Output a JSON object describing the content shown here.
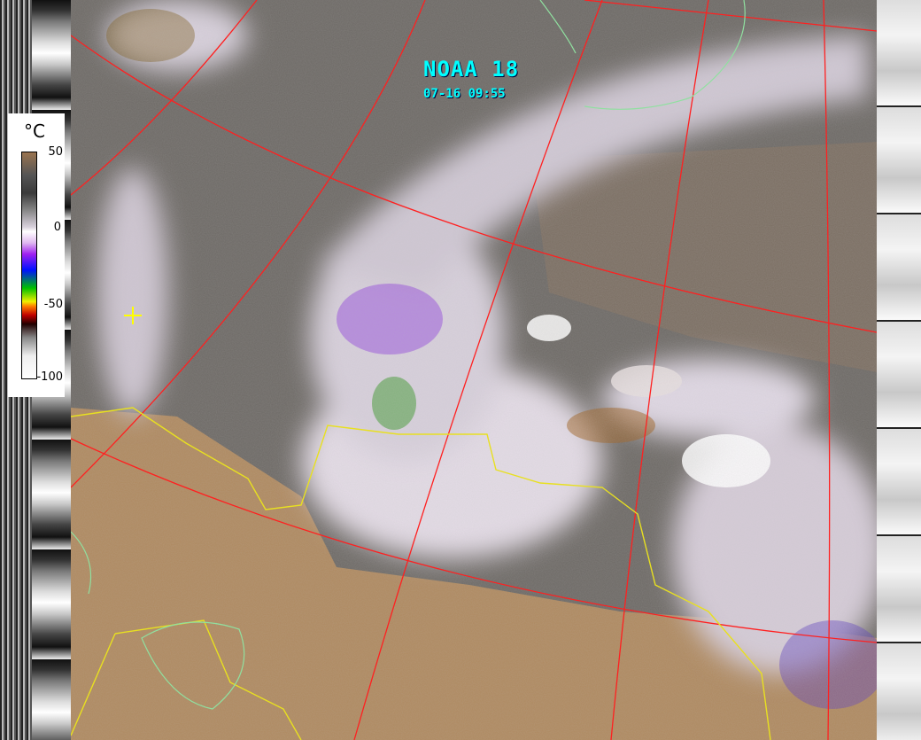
{
  "header": {
    "satellite": "NOAA 18",
    "timestamp": "07-16 09:55"
  },
  "legend": {
    "unit": "°C",
    "ticks": [
      "50",
      "0",
      "-50",
      "-100"
    ],
    "range": [
      -100,
      50
    ]
  },
  "colors": {
    "grid": "#ff2020",
    "borders": "#e8e020",
    "coast": "#90e0a0",
    "title": "#00ffff",
    "land": "#b08a60",
    "ocean": "#6e6a66",
    "marker": "#ffff00"
  }
}
